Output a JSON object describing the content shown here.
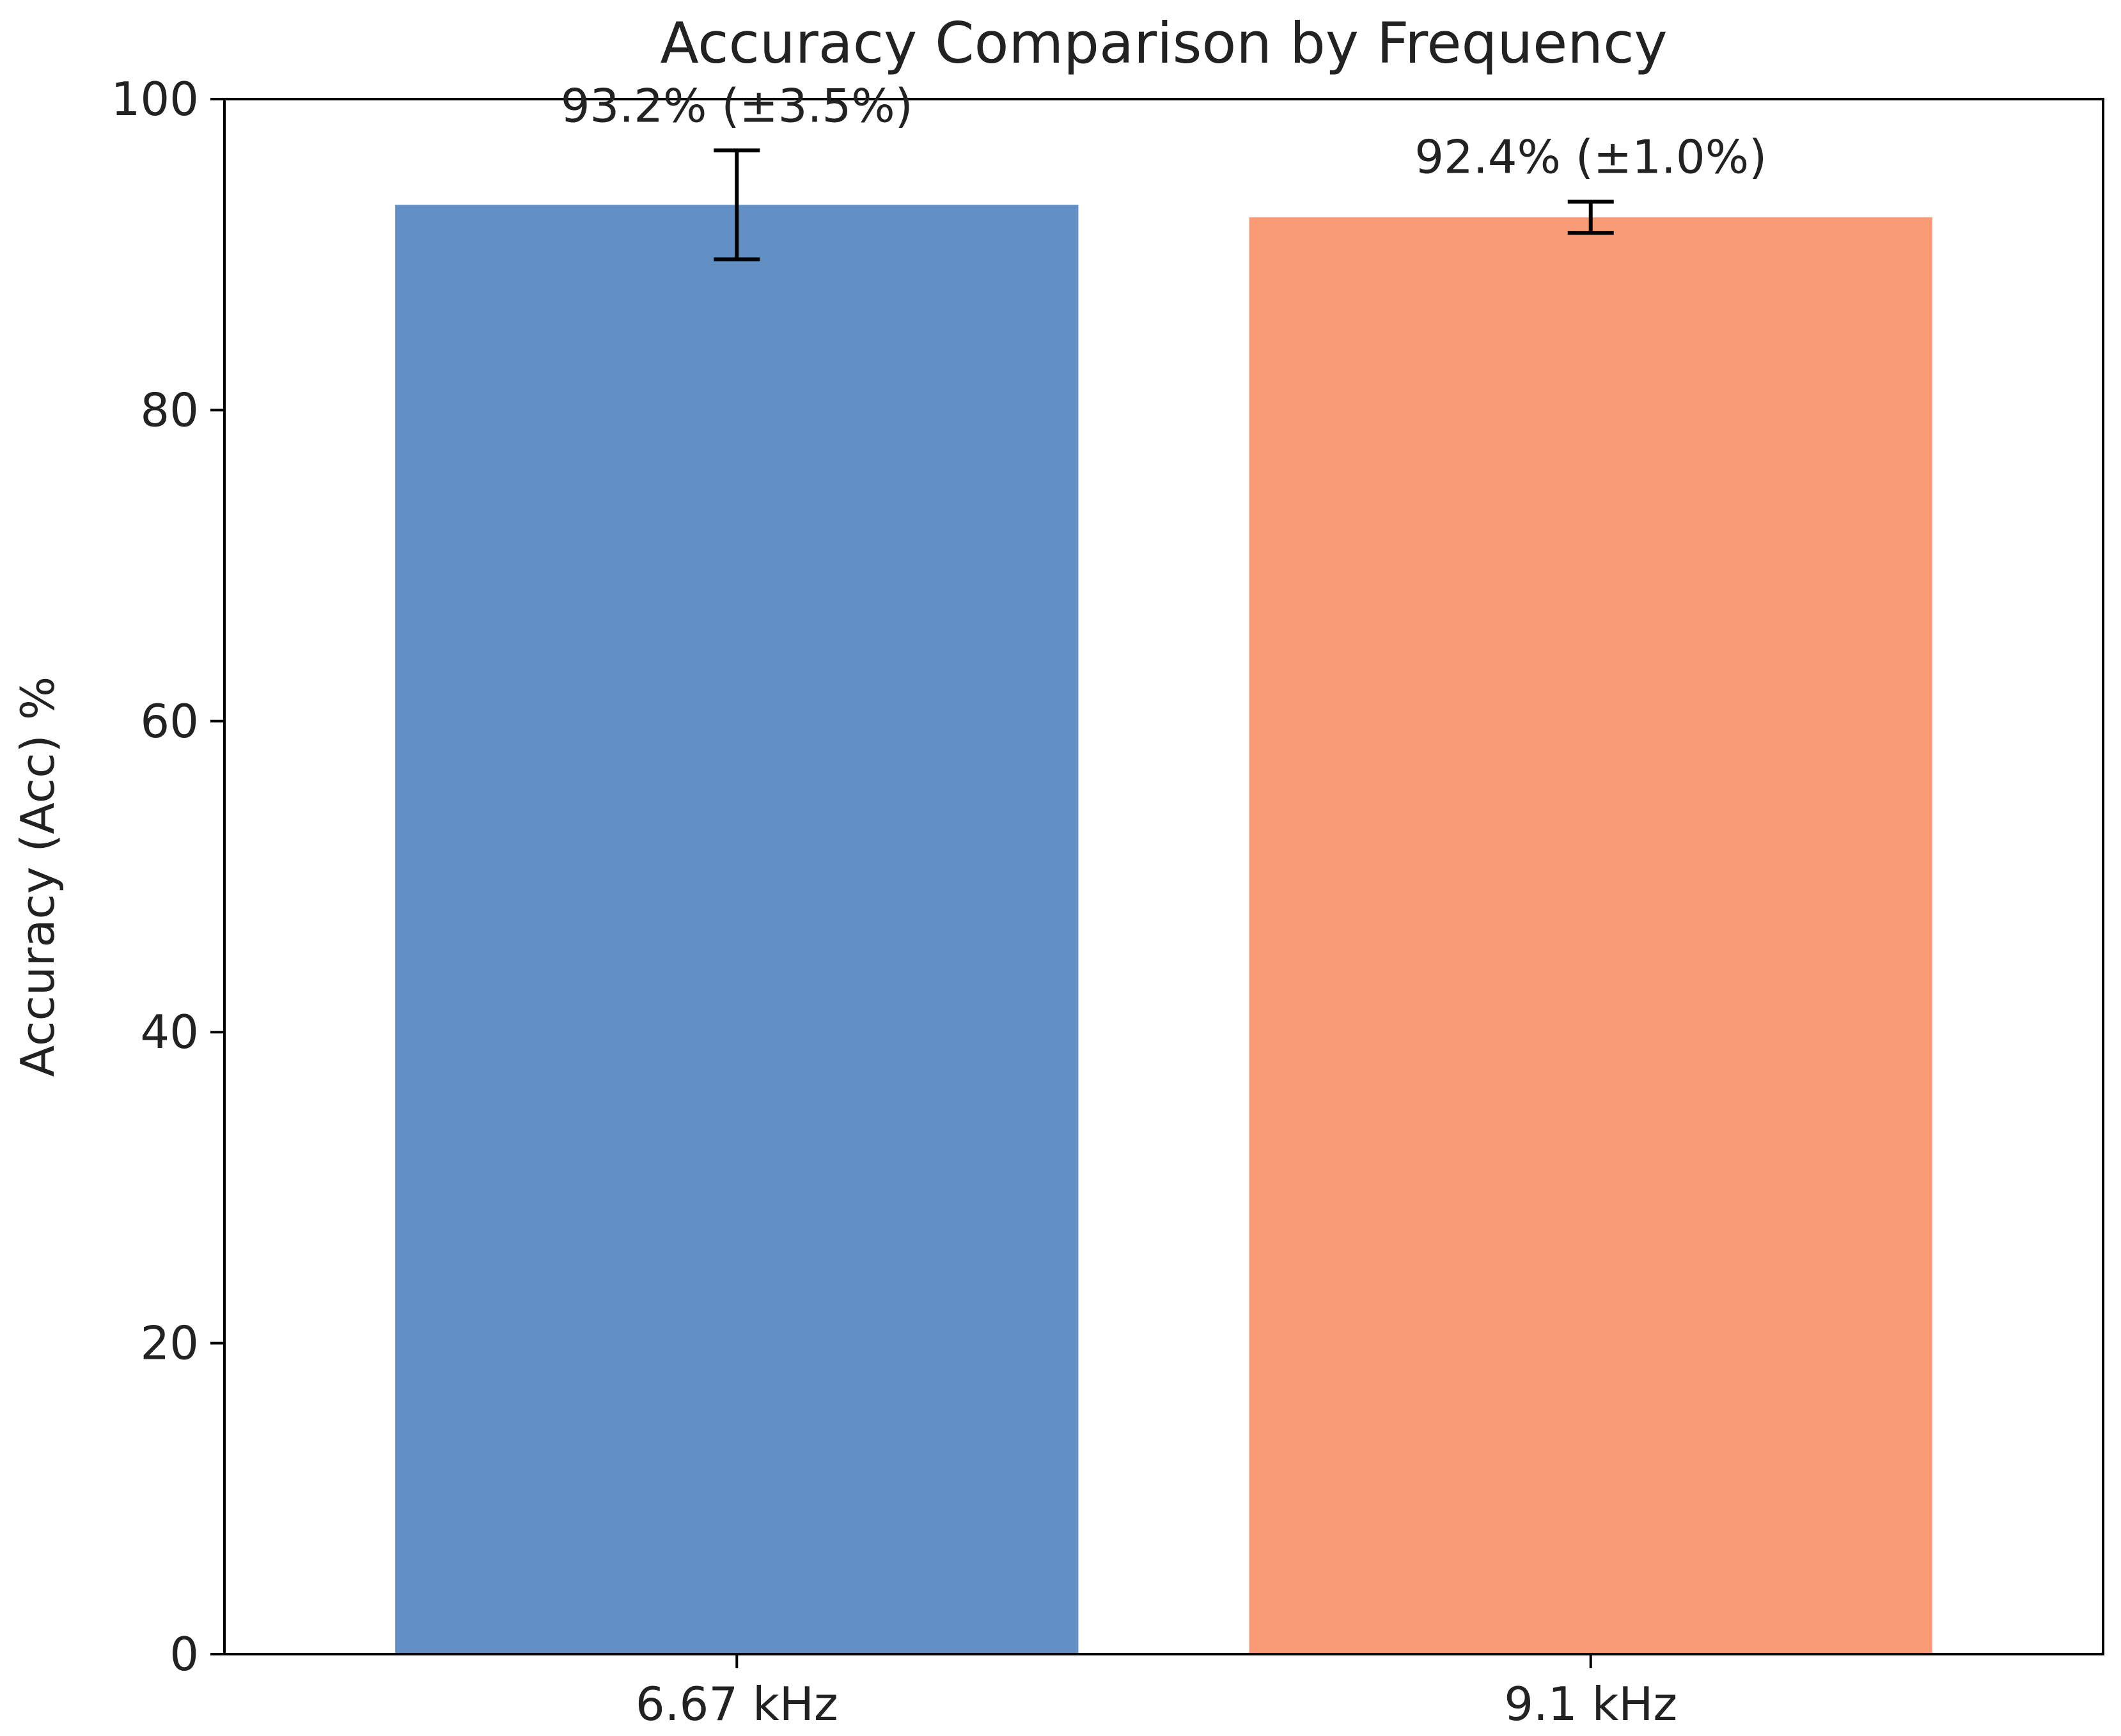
{
  "chart_data": {
    "type": "bar",
    "title": "Accuracy Comparison by Frequency",
    "xlabel": "",
    "ylabel": "Accuracy (Acc) %",
    "categories": [
      "6.67 kHz",
      "9.1 kHz"
    ],
    "values": [
      93.2,
      92.4
    ],
    "errors": [
      3.5,
      1.0
    ],
    "data_labels": [
      "93.2% (±3.5%)",
      "92.4% (±1.0%)"
    ],
    "colors": [
      "#6390c4",
      "#f99c75"
    ],
    "ylim": [
      0,
      100
    ],
    "yticks": [
      0,
      20,
      40,
      60,
      80,
      100
    ],
    "ytick_labels": [
      "0",
      "20",
      "40",
      "60",
      "80",
      "100"
    ],
    "grid": false,
    "legend": "none"
  }
}
